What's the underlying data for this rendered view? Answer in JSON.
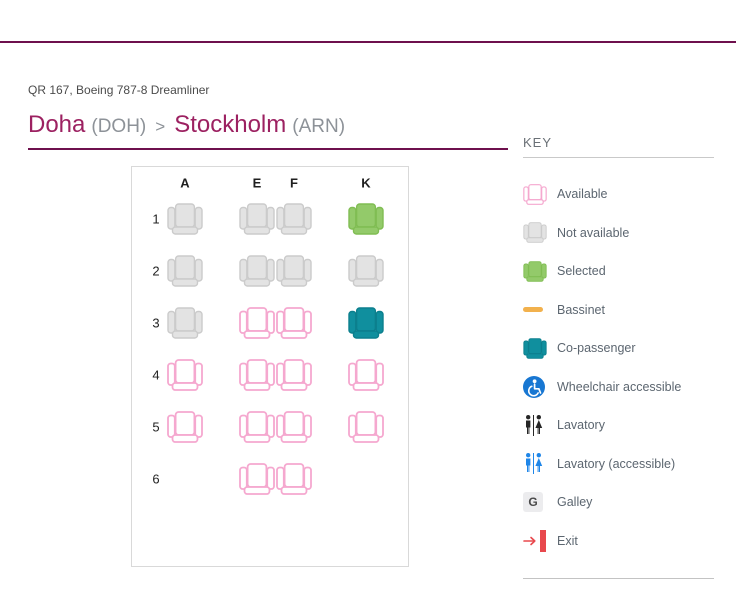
{
  "header": {
    "flight_info": "QR 167, Boeing 787-8 Dreamliner",
    "route": {
      "origin_city": "Doha",
      "origin_code": "(DOH)",
      "separator": ">",
      "destination_city": "Stockholm",
      "destination_code": "(ARN)"
    }
  },
  "seat_map": {
    "columns": [
      "A",
      "E",
      "F",
      "K"
    ],
    "rows": [
      {
        "number": "1",
        "seats": [
          {
            "col": "A",
            "state": "unavailable"
          },
          {
            "col": "E",
            "state": "unavailable"
          },
          {
            "col": "F",
            "state": "unavailable"
          },
          {
            "col": "K",
            "state": "selected"
          }
        ]
      },
      {
        "number": "2",
        "seats": [
          {
            "col": "A",
            "state": "unavailable"
          },
          {
            "col": "E",
            "state": "unavailable"
          },
          {
            "col": "F",
            "state": "unavailable"
          },
          {
            "col": "K",
            "state": "unavailable"
          }
        ]
      },
      {
        "number": "3",
        "seats": [
          {
            "col": "A",
            "state": "unavailable"
          },
          {
            "col": "E",
            "state": "available"
          },
          {
            "col": "F",
            "state": "available"
          },
          {
            "col": "K",
            "state": "copassenger"
          }
        ]
      },
      {
        "number": "4",
        "seats": [
          {
            "col": "A",
            "state": "available"
          },
          {
            "col": "E",
            "state": "available"
          },
          {
            "col": "F",
            "state": "available"
          },
          {
            "col": "K",
            "state": "available"
          }
        ]
      },
      {
        "number": "5",
        "seats": [
          {
            "col": "A",
            "state": "available"
          },
          {
            "col": "E",
            "state": "available"
          },
          {
            "col": "F",
            "state": "available"
          },
          {
            "col": "K",
            "state": "available"
          }
        ]
      },
      {
        "number": "6",
        "seats": [
          {
            "col": "E",
            "state": "available"
          },
          {
            "col": "F",
            "state": "available"
          }
        ]
      }
    ]
  },
  "key": {
    "title": "KEY",
    "galley_letter": "G",
    "items": [
      {
        "icon": "seat-available-icon",
        "label": "Available"
      },
      {
        "icon": "seat-unavailable-icon",
        "label": "Not available"
      },
      {
        "icon": "seat-selected-icon",
        "label": "Selected"
      },
      {
        "icon": "bassinet-icon",
        "label": "Bassinet"
      },
      {
        "icon": "seat-copassenger-icon",
        "label": "Co-passenger"
      },
      {
        "icon": "wheelchair-icon",
        "label": "Wheelchair accessible"
      },
      {
        "icon": "lavatory-icon",
        "label": "Lavatory"
      },
      {
        "icon": "lavatory-accessible-icon",
        "label": "Lavatory (accessible)"
      },
      {
        "icon": "galley-icon",
        "label": "Galley"
      },
      {
        "icon": "exit-icon",
        "label": "Exit"
      }
    ]
  },
  "colors": {
    "accent": "#6e104d",
    "route_city": "#9c2161",
    "available_stroke": "#f5a8cf",
    "unavailable_fill": "#e3e3e3",
    "unavailable_stroke": "#cbcbcb",
    "selected_fill": "#93ca6a",
    "selected_stroke": "#80bd53",
    "copassenger_fill": "#108f9e",
    "copassenger_stroke": "#0c7f8d",
    "bassinet": "#f2b14d",
    "wheelchair_blue": "#1877d2",
    "lavatory_black": "#262626",
    "lavatory_blue": "#1f86e8",
    "exit_red": "#e8484d",
    "galley_text": "#4a4a4a"
  }
}
